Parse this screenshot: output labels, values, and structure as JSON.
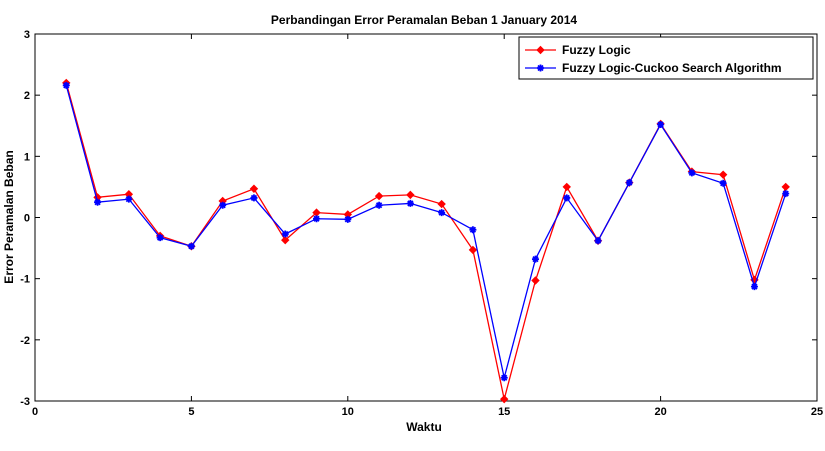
{
  "chart_data": {
    "type": "line",
    "title": "Perbandingan Error Peramalan Beban 1 January 2014",
    "xlabel": "Waktu",
    "ylabel": "Error Peramalan Beban",
    "xlim": [
      0,
      25
    ],
    "ylim": [
      -3,
      3
    ],
    "xticks": [
      0,
      5,
      10,
      15,
      20,
      25
    ],
    "yticks": [
      3,
      2,
      1,
      0,
      -1,
      -2,
      -3
    ],
    "grid": false,
    "legend_position": "top-right",
    "x": [
      1,
      2,
      3,
      4,
      5,
      6,
      7,
      8,
      9,
      10,
      11,
      12,
      13,
      14,
      15,
      16,
      17,
      18,
      19,
      20,
      21,
      22,
      23,
      24
    ],
    "series": [
      {
        "name": "Fuzzy Logic",
        "color": "#ff0000",
        "marker": "diamond",
        "values": [
          2.2,
          0.33,
          0.38,
          -0.3,
          -0.47,
          0.27,
          0.47,
          -0.37,
          0.08,
          0.05,
          0.35,
          0.37,
          0.22,
          -0.53,
          -2.97,
          -1.03,
          0.5,
          -0.38,
          0.57,
          1.53,
          0.75,
          0.7,
          -1.02,
          0.5
        ]
      },
      {
        "name": "Fuzzy Logic-Cuckoo Search Algorithm",
        "color": "#0000ff",
        "marker": "star",
        "values": [
          2.16,
          0.25,
          0.3,
          -0.33,
          -0.47,
          0.2,
          0.32,
          -0.27,
          -0.02,
          -0.03,
          0.2,
          0.23,
          0.08,
          -0.2,
          -2.62,
          -0.68,
          0.32,
          -0.38,
          0.57,
          1.52,
          0.73,
          0.56,
          -1.13,
          0.39
        ]
      }
    ]
  }
}
